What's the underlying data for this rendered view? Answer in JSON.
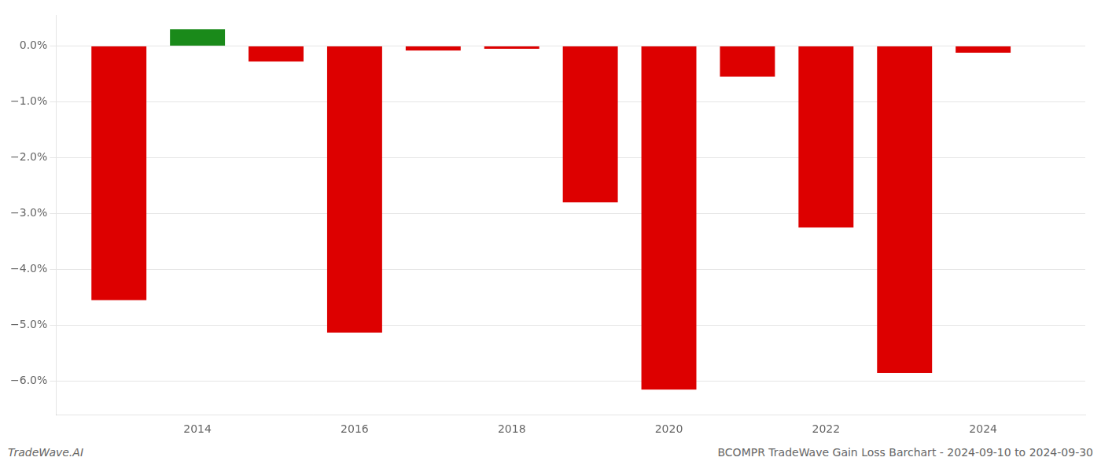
{
  "chart_data": {
    "type": "bar",
    "x": [
      2013,
      2014,
      2015,
      2016,
      2017,
      2018,
      2019,
      2020,
      2021,
      2022,
      2023,
      2024
    ],
    "values": [
      -4.55,
      0.3,
      -0.28,
      -5.13,
      -0.08,
      -0.05,
      -2.8,
      -6.15,
      -0.55,
      -3.25,
      -5.85,
      -0.12
    ],
    "colors": [
      "#dd0000",
      "#1a8a1a",
      "#dd0000",
      "#dd0000",
      "#dd0000",
      "#dd0000",
      "#dd0000",
      "#dd0000",
      "#dd0000",
      "#dd0000",
      "#dd0000",
      "#dd0000"
    ],
    "xlim": [
      2012.2,
      2025.3
    ],
    "xticks": [
      2014,
      2016,
      2018,
      2020,
      2022,
      2024
    ],
    "ylim": [
      -6.6,
      0.55
    ],
    "yticks": [
      {
        "value": 0.0,
        "label": "0.0%"
      },
      {
        "value": -1.0,
        "label": "−1.0%"
      },
      {
        "value": -2.0,
        "label": "−2.0%"
      },
      {
        "value": -3.0,
        "label": "−3.0%"
      },
      {
        "value": -4.0,
        "label": "−4.0%"
      },
      {
        "value": -5.0,
        "label": "−5.0%"
      },
      {
        "value": -6.0,
        "label": "−6.0%"
      }
    ],
    "grid": "y",
    "annotations": [
      "TradeWave.AI",
      "BCOMPR TradeWave Gain Loss Barchart - 2024-09-10 to 2024-09-30"
    ]
  }
}
